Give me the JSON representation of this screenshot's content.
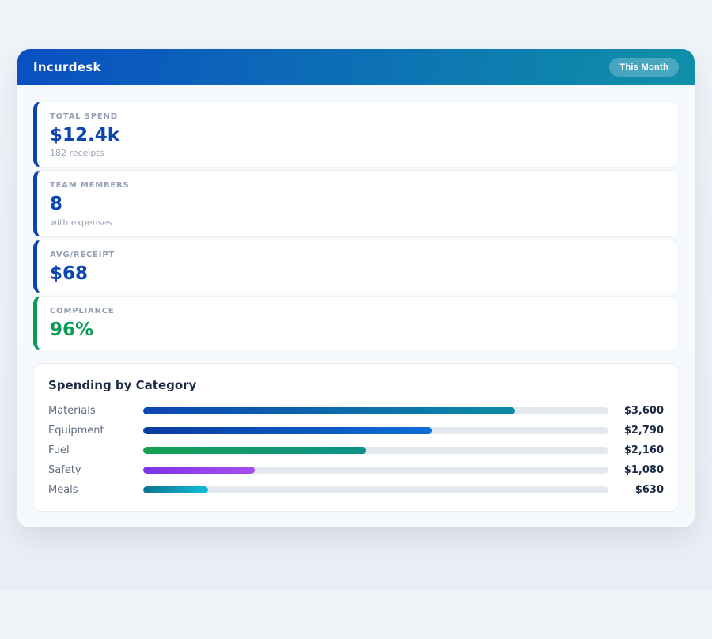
{
  "header": {
    "title": "Incurdesk",
    "badge": "This Month",
    "gradient_from": "#0a4fc2",
    "gradient_to": "#0f90a8"
  },
  "stats": [
    {
      "label": "TOTAL SPEND",
      "value": "$12.4k",
      "sub": "182 receipts",
      "accent": "#0c45ae",
      "value_color": "#0c45ae"
    },
    {
      "label": "TEAM MEMBERS",
      "value": "8",
      "sub": "with expenses",
      "accent": "#0c45ae",
      "value_color": "#0c45ae"
    },
    {
      "label": "AVG/RECEIPT",
      "value": "$68",
      "accent": "#0c45ae",
      "value_color": "#0c45ae"
    },
    {
      "label": "COMPLIANCE",
      "value": "96%",
      "accent": "#0a9b57",
      "value_color": "#0a9b57"
    }
  ],
  "chart_data": {
    "type": "bar",
    "orientation": "horizontal",
    "title": "Spending by Category",
    "categories": [
      "Materials",
      "Equipment",
      "Fuel",
      "Safety",
      "Meals"
    ],
    "values": [
      3600,
      2790,
      2160,
      1080,
      630
    ],
    "value_labels": [
      "$3,600",
      "$2,790",
      "$2,160",
      "$1,080",
      "$630"
    ],
    "axis_max": 4500,
    "grid": false,
    "legend": false,
    "track_color": "#e4e9f0",
    "bar_gradients": [
      [
        "#0b45b5",
        "#0d8ba4"
      ],
      [
        "#093b9e",
        "#0d6ed6"
      ],
      [
        "#15a054",
        "#0d9189"
      ],
      [
        "#7d33e8",
        "#a94df2"
      ],
      [
        "#0c7490",
        "#12bcd8"
      ]
    ]
  }
}
